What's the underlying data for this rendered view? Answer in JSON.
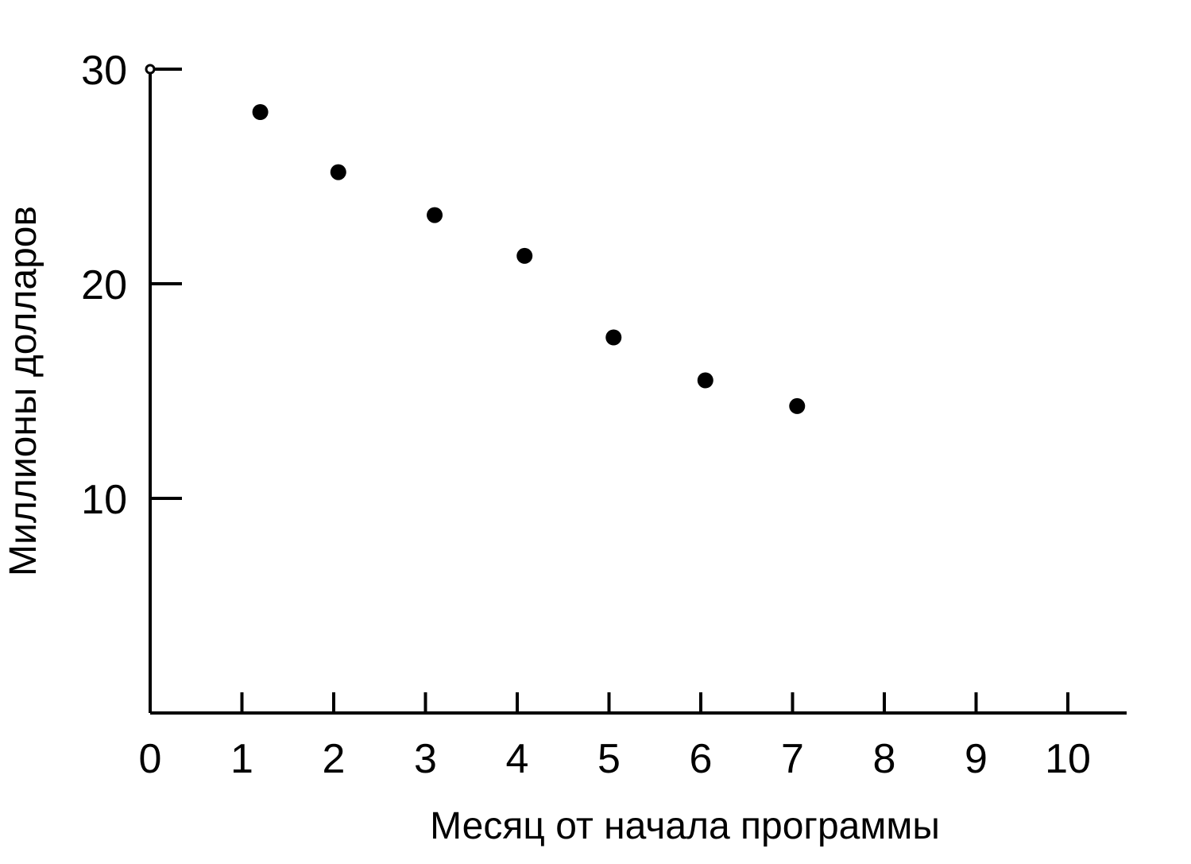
{
  "chart_data": {
    "type": "scatter",
    "xlabel": "Месяц от начала программы",
    "ylabel": "Миллионы долларов",
    "xlim": [
      0,
      10
    ],
    "ylim": [
      0,
      30
    ],
    "x_ticks": [
      "0",
      "1",
      "2",
      "3",
      "4",
      "5",
      "6",
      "7",
      "8",
      "9",
      "10"
    ],
    "y_ticks": [
      "10",
      "20",
      "30"
    ],
    "grid": false,
    "legend": "none",
    "series": [
      {
        "x": [
          0,
          1.2,
          2.05,
          3.1,
          4.08,
          5.05,
          6.05,
          7.05
        ],
        "y": [
          30,
          28,
          25.2,
          23.2,
          21.3,
          17.5,
          15.5,
          14.3
        ]
      }
    ],
    "colors": {
      "ink": "#000000",
      "background": "#ffffff"
    }
  }
}
